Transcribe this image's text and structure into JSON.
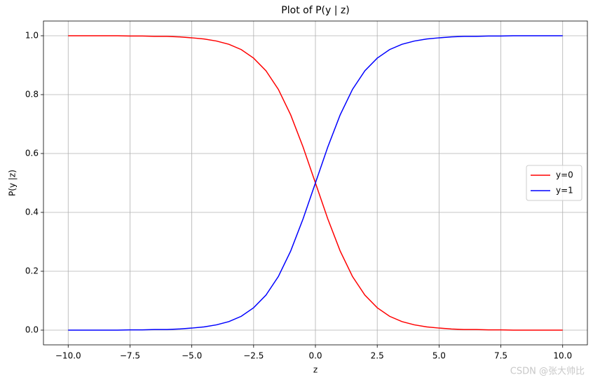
{
  "chart_data": {
    "type": "line",
    "title": "Plot of P(y | z)",
    "x_label": "z",
    "y_label": "P(y |z)",
    "x": [
      -10,
      -9.5,
      -9,
      -8.5,
      -8,
      -7.5,
      -7,
      -6.5,
      -6,
      -5.5,
      -5,
      -4.5,
      -4,
      -3.5,
      -3,
      -2.5,
      -2,
      -1.5,
      -1,
      -0.5,
      0,
      0.5,
      1,
      1.5,
      2,
      2.5,
      3,
      3.5,
      4,
      4.5,
      5,
      5.5,
      6,
      6.5,
      7,
      7.5,
      8,
      8.5,
      9,
      9.5,
      10
    ],
    "series": [
      {
        "name": "y=0",
        "color": "#ff0000",
        "values": [
          1.0,
          1.0,
          1.0,
          1.0,
          1.0,
          0.999,
          0.999,
          0.998,
          0.998,
          0.996,
          0.993,
          0.989,
          0.982,
          0.971,
          0.953,
          0.924,
          0.881,
          0.818,
          0.731,
          0.622,
          0.5,
          0.378,
          0.269,
          0.182,
          0.119,
          0.076,
          0.047,
          0.029,
          0.018,
          0.011,
          0.007,
          0.004,
          0.002,
          0.002,
          0.001,
          0.001,
          0.0,
          0.0,
          0.0,
          0.0,
          0.0
        ]
      },
      {
        "name": "y=1",
        "color": "#0000ff",
        "values": [
          0.0,
          0.0,
          0.0,
          0.0,
          0.0,
          0.001,
          0.001,
          0.002,
          0.002,
          0.004,
          0.007,
          0.011,
          0.018,
          0.029,
          0.047,
          0.076,
          0.119,
          0.182,
          0.269,
          0.378,
          0.5,
          0.622,
          0.731,
          0.818,
          0.881,
          0.924,
          0.953,
          0.971,
          0.982,
          0.989,
          0.993,
          0.996,
          0.998,
          0.998,
          0.999,
          0.999,
          1.0,
          1.0,
          1.0,
          1.0,
          1.0
        ]
      }
    ],
    "xlim": [
      -11,
      11
    ],
    "ylim": [
      -0.05,
      1.05
    ],
    "xticks": [
      {
        "value": -10,
        "label": "−10.0"
      },
      {
        "value": -7.5,
        "label": "−7.5"
      },
      {
        "value": -5,
        "label": "−5.0"
      },
      {
        "value": -2.5,
        "label": "−2.5"
      },
      {
        "value": 0,
        "label": "0.0"
      },
      {
        "value": 2.5,
        "label": "2.5"
      },
      {
        "value": 5,
        "label": "5.0"
      },
      {
        "value": 7.5,
        "label": "7.5"
      },
      {
        "value": 10,
        "label": "10.0"
      }
    ],
    "yticks": [
      {
        "value": 0,
        "label": "0.0"
      },
      {
        "value": 0.2,
        "label": "0.2"
      },
      {
        "value": 0.4,
        "label": "0.4"
      },
      {
        "value": 0.6,
        "label": "0.6"
      },
      {
        "value": 0.8,
        "label": "0.8"
      },
      {
        "value": 1,
        "label": "1.0"
      }
    ],
    "grid": true,
    "legend": "center right",
    "watermark": "CSDN @张大帅比"
  }
}
